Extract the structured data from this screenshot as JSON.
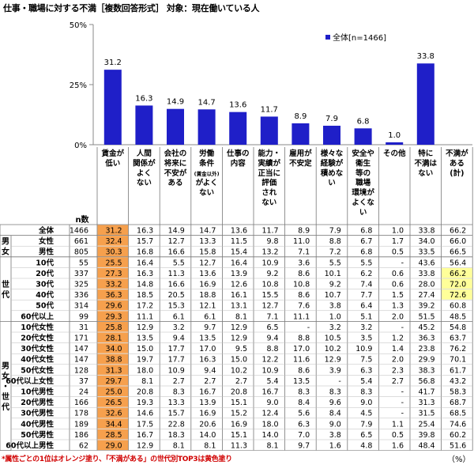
{
  "title": "仕事・職場に対する不満［複数回答形式］ 対象：現在働いている人",
  "chart_data": {
    "type": "bar",
    "ylim": [
      0,
      50
    ],
    "yticks": [
      "0%",
      "25%",
      "50%"
    ],
    "legend": "全体[n=1466]",
    "legend_placement": "top-right",
    "bar_color": "#1f1fc8",
    "categories": [
      "賃金が\n低い",
      "人間\n関係が\nよく\nない",
      "会社の\n将来に\n不安が\nある",
      "労働\n条件\n(賃金以外)\nがよく\nない",
      "仕事の\n内容",
      "能力・\n実績が\n正当に\n評価\nされ\nない",
      "雇用が\n不安定",
      "様々な\n経験が\n積めな\nい",
      "安全や\n衛生\n等の\n職場\n環境が\nよくな\nい",
      "その他",
      "特に\n不満は\nない",
      "不満が\nある\n(計)"
    ],
    "values": [
      31.2,
      16.3,
      14.9,
      14.7,
      13.6,
      11.7,
      8.9,
      7.9,
      6.8,
      1.0,
      33.8,
      null
    ]
  },
  "table": {
    "n_header": "n数",
    "groups": [
      {
        "label": "",
        "rows": [
          "全体"
        ]
      },
      {
        "label": "男女",
        "rows": [
          "女性",
          "男性"
        ]
      },
      {
        "label": "世代",
        "rows": [
          "10代",
          "20代",
          "30代",
          "40代",
          "50代",
          "60代以上"
        ]
      },
      {
        "label": "男女・世代",
        "rows": [
          "10代女性",
          "20代女性",
          "30代女性",
          "40代女性",
          "50代女性",
          "60代以上女性",
          "10代男性",
          "20代男性",
          "30代男性",
          "40代男性",
          "50代男性",
          "60代以上男性"
        ]
      }
    ],
    "rows": [
      {
        "label": "全体",
        "n": "1466",
        "v": [
          "31.2",
          "16.3",
          "14.9",
          "14.7",
          "13.6",
          "11.7",
          "8.9",
          "7.9",
          "6.8",
          "1.0",
          "33.8",
          "66.2"
        ],
        "orange": 0,
        "yellow": false
      },
      {
        "label": "女性",
        "n": "661",
        "v": [
          "32.4",
          "15.7",
          "12.7",
          "13.3",
          "11.5",
          "9.8",
          "11.0",
          "8.8",
          "6.7",
          "1.7",
          "34.0",
          "66.0"
        ],
        "orange": 0,
        "yellow": false
      },
      {
        "label": "男性",
        "n": "805",
        "v": [
          "30.3",
          "16.8",
          "16.6",
          "15.8",
          "15.4",
          "13.2",
          "7.1",
          "7.2",
          "6.8",
          "0.5",
          "33.5",
          "66.5"
        ],
        "orange": 0,
        "yellow": false
      },
      {
        "label": "10代",
        "n": "55",
        "v": [
          "25.5",
          "16.4",
          "5.5",
          "12.7",
          "16.4",
          "10.9",
          "3.6",
          "5.5",
          "5.5",
          "-",
          "43.6",
          "56.4"
        ],
        "orange": 0,
        "yellow": false
      },
      {
        "label": "20代",
        "n": "337",
        "v": [
          "27.3",
          "16.3",
          "11.3",
          "13.6",
          "13.9",
          "9.2",
          "8.6",
          "10.1",
          "6.2",
          "0.6",
          "33.8",
          "66.2"
        ],
        "orange": 0,
        "yellow": true
      },
      {
        "label": "30代",
        "n": "325",
        "v": [
          "33.2",
          "14.8",
          "16.6",
          "16.9",
          "12.6",
          "10.8",
          "10.8",
          "9.2",
          "7.4",
          "0.6",
          "28.0",
          "72.0"
        ],
        "orange": 0,
        "yellow": true
      },
      {
        "label": "40代",
        "n": "336",
        "v": [
          "36.3",
          "18.5",
          "20.5",
          "18.8",
          "16.1",
          "15.5",
          "8.6",
          "10.7",
          "7.7",
          "1.5",
          "27.4",
          "72.6"
        ],
        "orange": 0,
        "yellow": true
      },
      {
        "label": "50代",
        "n": "314",
        "v": [
          "29.6",
          "17.2",
          "15.3",
          "12.1",
          "13.1",
          "12.7",
          "7.6",
          "3.8",
          "6.4",
          "1.3",
          "39.2",
          "60.8"
        ],
        "orange": 0,
        "yellow": false
      },
      {
        "label": "60代以上",
        "n": "99",
        "v": [
          "29.3",
          "11.1",
          "6.1",
          "6.1",
          "8.1",
          "7.1",
          "11.1",
          "1.0",
          "5.1",
          "2.0",
          "51.5",
          "48.5"
        ],
        "orange": 0,
        "yellow": false
      },
      {
        "label": "10代女性",
        "n": "31",
        "v": [
          "25.8",
          "12.9",
          "3.2",
          "9.7",
          "12.9",
          "6.5",
          "-",
          "3.2",
          "3.2",
          "-",
          "45.2",
          "54.8"
        ],
        "orange": 0,
        "yellow": false
      },
      {
        "label": "20代女性",
        "n": "171",
        "v": [
          "28.1",
          "13.5",
          "9.4",
          "13.5",
          "12.9",
          "9.4",
          "8.8",
          "10.5",
          "3.5",
          "1.2",
          "36.3",
          "63.7"
        ],
        "orange": 0,
        "yellow": false
      },
      {
        "label": "30代女性",
        "n": "147",
        "v": [
          "34.0",
          "15.0",
          "17.7",
          "17.0",
          "9.5",
          "8.8",
          "17.0",
          "10.2",
          "10.9",
          "1.4",
          "23.8",
          "76.2"
        ],
        "orange": 0,
        "yellow": false
      },
      {
        "label": "40代女性",
        "n": "147",
        "v": [
          "38.8",
          "19.7",
          "17.7",
          "16.3",
          "15.0",
          "12.2",
          "11.6",
          "12.9",
          "7.5",
          "2.0",
          "29.9",
          "70.1"
        ],
        "orange": 0,
        "yellow": false
      },
      {
        "label": "50代女性",
        "n": "128",
        "v": [
          "31.3",
          "18.0",
          "10.9",
          "9.4",
          "10.2",
          "10.9",
          "8.6",
          "3.9",
          "6.3",
          "2.3",
          "38.3",
          "61.7"
        ],
        "orange": 0,
        "yellow": false
      },
      {
        "label": "60代以上女性",
        "n": "37",
        "v": [
          "29.7",
          "8.1",
          "2.7",
          "2.7",
          "2.7",
          "5.4",
          "13.5",
          "-",
          "5.4",
          "2.7",
          "56.8",
          "43.2"
        ],
        "orange": 0,
        "yellow": false
      },
      {
        "label": "10代男性",
        "n": "24",
        "v": [
          "25.0",
          "20.8",
          "8.3",
          "16.7",
          "20.8",
          "16.7",
          "8.3",
          "8.3",
          "8.3",
          "-",
          "41.7",
          "58.3"
        ],
        "orange": 0,
        "yellow": false
      },
      {
        "label": "20代男性",
        "n": "166",
        "v": [
          "26.5",
          "19.3",
          "13.3",
          "13.9",
          "15.1",
          "9.0",
          "8.4",
          "9.6",
          "9.0",
          "-",
          "31.3",
          "68.7"
        ],
        "orange": 0,
        "yellow": false
      },
      {
        "label": "30代男性",
        "n": "178",
        "v": [
          "32.6",
          "14.6",
          "15.7",
          "16.9",
          "15.2",
          "12.4",
          "5.6",
          "8.4",
          "4.5",
          "-",
          "31.5",
          "68.5"
        ],
        "orange": 0,
        "yellow": false
      },
      {
        "label": "40代男性",
        "n": "189",
        "v": [
          "34.4",
          "17.5",
          "22.8",
          "20.6",
          "16.9",
          "18.0",
          "6.3",
          "9.0",
          "7.9",
          "1.1",
          "25.4",
          "74.6"
        ],
        "orange": 0,
        "yellow": false
      },
      {
        "label": "50代男性",
        "n": "186",
        "v": [
          "28.5",
          "16.7",
          "18.3",
          "14.0",
          "15.1",
          "14.0",
          "7.0",
          "3.8",
          "6.5",
          "0.5",
          "39.8",
          "60.2"
        ],
        "orange": 0,
        "yellow": false
      },
      {
        "label": "60代以上男性",
        "n": "62",
        "v": [
          "29.0",
          "12.9",
          "8.1",
          "8.1",
          "11.3",
          "8.1",
          "9.7",
          "1.6",
          "4.8",
          "1.6",
          "48.4",
          "51.6"
        ],
        "orange": 0,
        "yellow": false
      }
    ]
  },
  "footnote": "*属性ごとの1位はオレンジ塗り、「不満がある」の世代別TOP3は黄色塗り",
  "unit": "（%）",
  "colors": {
    "orange": "#f6a04d",
    "yellow": "#ffff99",
    "bar": "#1f1fc8"
  }
}
